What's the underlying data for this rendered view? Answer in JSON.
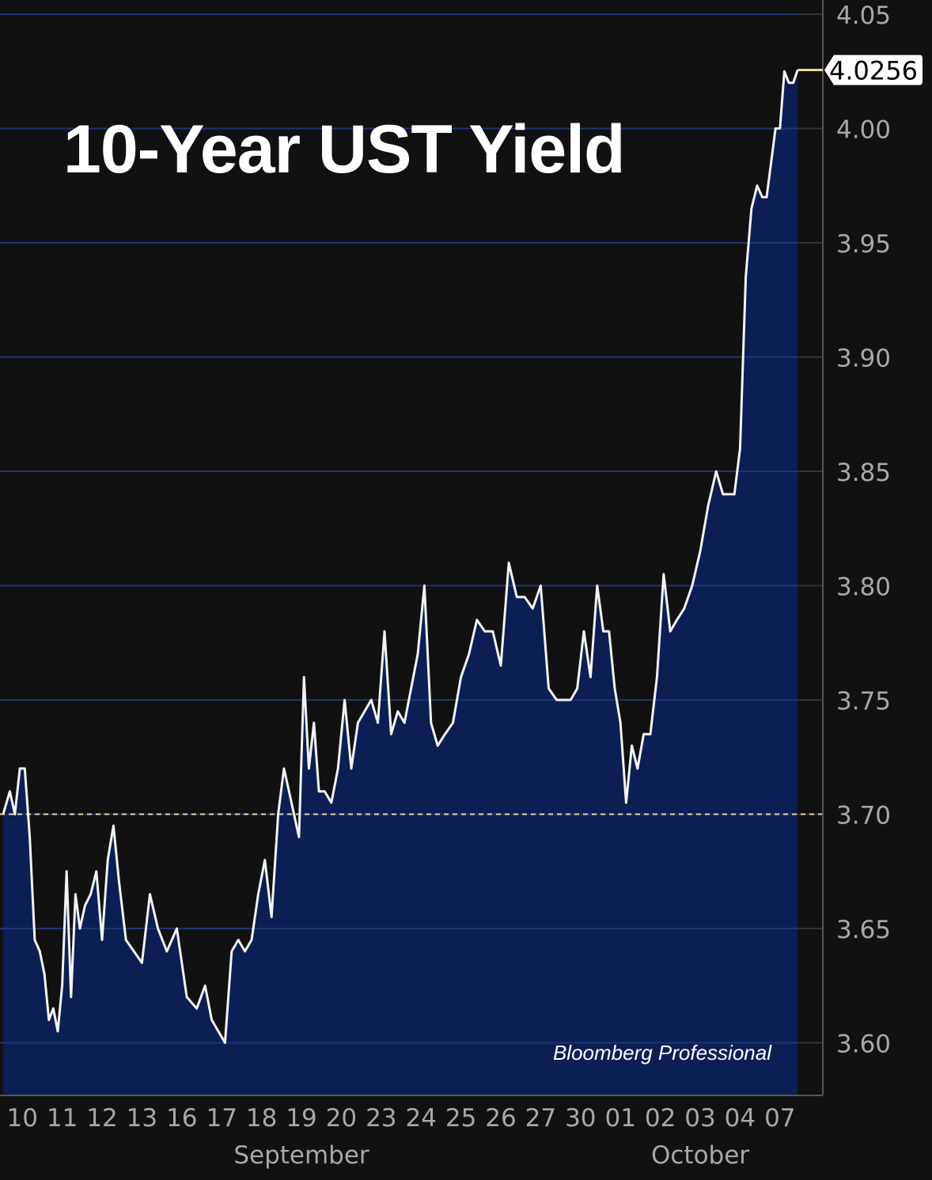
{
  "chart_data": {
    "type": "area",
    "title": "10-Year UST Yield",
    "source_label": "Bloomberg Professional",
    "xlabel": "",
    "ylabel": "",
    "ylim": [
      3.575,
      4.05
    ],
    "y_ticks": [
      "3.60",
      "3.65",
      "3.70",
      "3.75",
      "3.80",
      "3.85",
      "3.90",
      "3.95",
      "4.00",
      "4.05"
    ],
    "x_tick_labels": [
      "10",
      "11",
      "12",
      "13",
      "16",
      "17",
      "18",
      "19",
      "20",
      "23",
      "24",
      "25",
      "26",
      "27",
      "30",
      "01",
      "02",
      "03",
      "04",
      "07"
    ],
    "months": [
      {
        "label": "September",
        "center_tick": "19"
      },
      {
        "label": "October",
        "center_tick": "03"
      }
    ],
    "grid": true,
    "reference_line": {
      "value": 3.7,
      "style": "dashed",
      "color": "#f2d69a"
    },
    "last_value": {
      "label": "4.0256",
      "value": 4.0256
    },
    "colors": {
      "background": "#111111",
      "line": "#f2f2f2",
      "fill": "#0b1f55",
      "grid": "#333333",
      "axis_text": "#a8a8a8",
      "last_value_line": "#f2d69a"
    },
    "series": [
      {
        "day": "10",
        "values": [
          3.7,
          3.71,
          3.7,
          3.72,
          3.72,
          3.69,
          3.645,
          3.64
        ]
      },
      {
        "day": "11",
        "values": [
          3.63,
          3.61,
          3.615,
          3.605,
          3.625,
          3.675,
          3.62,
          3.665,
          3.65
        ]
      },
      {
        "day": "12",
        "values": [
          3.66,
          3.665,
          3.675,
          3.645,
          3.68,
          3.695,
          3.67
        ]
      },
      {
        "day": "13",
        "values": [
          3.645,
          3.64,
          3.635,
          3.665,
          3.65
        ]
      },
      {
        "day": "16",
        "values": [
          3.64,
          3.65,
          3.62,
          3.615
        ]
      },
      {
        "day": "17",
        "values": [
          3.625,
          3.61,
          3.605,
          3.6,
          3.64,
          3.645
        ]
      },
      {
        "day": "18",
        "values": [
          3.64,
          3.645,
          3.665,
          3.68,
          3.655,
          3.7
        ]
      },
      {
        "day": "19",
        "values": [
          3.72,
          3.71,
          3.7,
          3.69,
          3.76,
          3.72,
          3.74,
          3.71
        ]
      },
      {
        "day": "20",
        "values": [
          3.71,
          3.705,
          3.72,
          3.75,
          3.72,
          3.74
        ]
      },
      {
        "day": "23",
        "values": [
          3.745,
          3.75,
          3.74,
          3.78,
          3.735,
          3.745
        ]
      },
      {
        "day": "24",
        "values": [
          3.74,
          3.755,
          3.77,
          3.8,
          3.74,
          3.73
        ]
      },
      {
        "day": "25",
        "values": [
          3.735,
          3.74,
          3.76,
          3.77,
          3.785
        ]
      },
      {
        "day": "26",
        "values": [
          3.78,
          3.78,
          3.765,
          3.81,
          3.795
        ]
      },
      {
        "day": "27",
        "values": [
          3.795,
          3.79,
          3.8,
          3.755,
          3.75
        ]
      },
      {
        "day": "30",
        "values": [
          3.75,
          3.75,
          3.755,
          3.78,
          3.76,
          3.8
        ]
      },
      {
        "day": "01",
        "values": [
          3.78,
          3.78,
          3.755,
          3.74,
          3.705,
          3.73,
          3.72
        ]
      },
      {
        "day": "02",
        "values": [
          3.735,
          3.735,
          3.76,
          3.805,
          3.78,
          3.785
        ]
      },
      {
        "day": "03",
        "values": [
          3.79,
          3.8,
          3.815,
          3.835,
          3.85
        ]
      },
      {
        "day": "04",
        "values": [
          3.84,
          3.84,
          3.84,
          3.86,
          3.935,
          3.965,
          3.975
        ]
      },
      {
        "day": "07",
        "values": [
          3.97,
          3.97,
          3.985,
          4.0,
          4.0,
          4.025,
          4.02,
          4.02,
          4.0256
        ]
      }
    ]
  }
}
